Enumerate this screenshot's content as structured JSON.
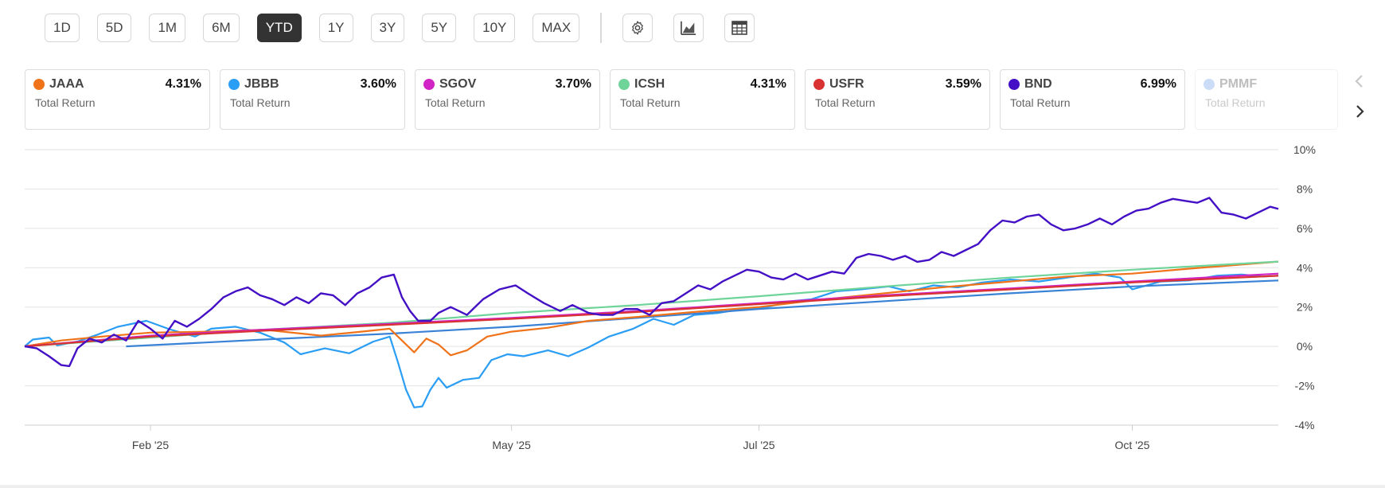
{
  "toolbar": {
    "ranges": [
      "1D",
      "5D",
      "1M",
      "6M",
      "YTD",
      "1Y",
      "3Y",
      "5Y",
      "10Y",
      "MAX"
    ],
    "active_range": "YTD",
    "icons": [
      "gear-icon",
      "chart-type-icon",
      "table-icon"
    ]
  },
  "cards": [
    {
      "symbol": "JAAA",
      "value": "4.31%",
      "sub": "Total Return",
      "color": "#f07219"
    },
    {
      "symbol": "JBBB",
      "value": "3.60%",
      "sub": "Total Return",
      "color": "#2a9df4"
    },
    {
      "symbol": "SGOV",
      "value": "3.70%",
      "sub": "Total Return",
      "color": "#d124c4"
    },
    {
      "symbol": "ICSH",
      "value": "4.31%",
      "sub": "Total Return",
      "color": "#6fd49a"
    },
    {
      "symbol": "USFR",
      "value": "3.59%",
      "sub": "Total Return",
      "color": "#d93232"
    },
    {
      "symbol": "BND",
      "value": "6.99%",
      "sub": "Total Return",
      "color": "#4410c6"
    },
    {
      "symbol": "PMMF",
      "value": "",
      "sub": "Total Return",
      "color": "#6a9ee8"
    }
  ],
  "nav": {
    "prev_icon": "chevron-left-icon",
    "next_icon": "chevron-right-icon"
  },
  "chart_data": {
    "type": "line",
    "title": "",
    "xlabel": "",
    "ylabel": "",
    "x_range": [
      "2025-01-01",
      "2025-11-06"
    ],
    "ylim": [
      -4,
      10
    ],
    "y_ticks": [
      -4,
      -2,
      0,
      2,
      4,
      6,
      8,
      10
    ],
    "y_tick_labels": [
      "-4%",
      "-2%",
      "0%",
      "2%",
      "4%",
      "6%",
      "8%",
      "10%"
    ],
    "x_ticks": [
      {
        "date": "2025-02-01",
        "label": "Feb '25"
      },
      {
        "date": "2025-05-01",
        "label": "May '25"
      },
      {
        "date": "2025-07-01",
        "label": "Jul '25"
      },
      {
        "date": "2025-10-01",
        "label": "Oct '25"
      }
    ],
    "grid": true,
    "series": [
      {
        "name": "JBBB",
        "color": "#2a9df4",
        "points": [
          [
            "2025-01-01",
            0
          ],
          [
            "2025-01-03",
            0.35
          ],
          [
            "2025-01-07",
            0.45
          ],
          [
            "2025-01-09",
            0.05
          ],
          [
            "2025-01-14",
            0.25
          ],
          [
            "2025-01-19",
            0.6
          ],
          [
            "2025-01-24",
            1.0
          ],
          [
            "2025-01-31",
            1.3
          ],
          [
            "2025-02-06",
            0.85
          ],
          [
            "2025-02-12",
            0.5
          ],
          [
            "2025-02-16",
            0.9
          ],
          [
            "2025-02-22",
            1.0
          ],
          [
            "2025-02-28",
            0.7
          ],
          [
            "2025-03-06",
            0.2
          ],
          [
            "2025-03-10",
            -0.4
          ],
          [
            "2025-03-16",
            -0.1
          ],
          [
            "2025-03-22",
            -0.35
          ],
          [
            "2025-03-28",
            0.25
          ],
          [
            "2025-04-01",
            0.5
          ],
          [
            "2025-04-03",
            -0.8
          ],
          [
            "2025-04-05",
            -2.2
          ],
          [
            "2025-04-07",
            -3.1
          ],
          [
            "2025-04-09",
            -3.05
          ],
          [
            "2025-04-11",
            -2.2
          ],
          [
            "2025-04-13",
            -1.6
          ],
          [
            "2025-04-15",
            -2.1
          ],
          [
            "2025-04-19",
            -1.7
          ],
          [
            "2025-04-23",
            -1.6
          ],
          [
            "2025-04-26",
            -0.7
          ],
          [
            "2025-04-30",
            -0.4
          ],
          [
            "2025-05-04",
            -0.5
          ],
          [
            "2025-05-10",
            -0.2
          ],
          [
            "2025-05-15",
            -0.5
          ],
          [
            "2025-05-20",
            -0.05
          ],
          [
            "2025-05-25",
            0.5
          ],
          [
            "2025-05-31",
            0.9
          ],
          [
            "2025-06-05",
            1.4
          ],
          [
            "2025-06-10",
            1.1
          ],
          [
            "2025-06-15",
            1.6
          ],
          [
            "2025-06-21",
            1.7
          ],
          [
            "2025-06-27",
            1.9
          ],
          [
            "2025-07-03",
            2.0
          ],
          [
            "2025-07-09",
            2.3
          ],
          [
            "2025-07-14",
            2.4
          ],
          [
            "2025-07-20",
            2.8
          ],
          [
            "2025-07-26",
            2.9
          ],
          [
            "2025-08-02",
            3.05
          ],
          [
            "2025-08-07",
            2.8
          ],
          [
            "2025-08-13",
            3.1
          ],
          [
            "2025-08-19",
            3.0
          ],
          [
            "2025-08-25",
            3.25
          ],
          [
            "2025-09-01",
            3.4
          ],
          [
            "2025-09-08",
            3.3
          ],
          [
            "2025-09-15",
            3.5
          ],
          [
            "2025-09-22",
            3.7
          ],
          [
            "2025-09-28",
            3.5
          ],
          [
            "2025-10-01",
            2.9
          ],
          [
            "2025-10-08",
            3.3
          ],
          [
            "2025-10-15",
            3.35
          ],
          [
            "2025-10-22",
            3.6
          ],
          [
            "2025-10-28",
            3.65
          ],
          [
            "2025-11-02",
            3.55
          ],
          [
            "2025-11-06",
            3.6
          ]
        ]
      },
      {
        "name": "PMMF",
        "color": "#3a82d6",
        "points": [
          [
            "2025-01-26",
            0.0
          ],
          [
            "2025-02-10",
            0.15
          ],
          [
            "2025-03-01",
            0.35
          ],
          [
            "2025-04-01",
            0.65
          ],
          [
            "2025-05-01",
            1.0
          ],
          [
            "2025-06-01",
            1.45
          ],
          [
            "2025-07-01",
            1.9
          ],
          [
            "2025-08-01",
            2.3
          ],
          [
            "2025-09-01",
            2.7
          ],
          [
            "2025-10-01",
            3.05
          ],
          [
            "2025-11-06",
            3.35
          ]
        ]
      },
      {
        "name": "JAAA",
        "color": "#f07219",
        "points": [
          [
            "2025-01-01",
            0
          ],
          [
            "2025-01-10",
            0.3
          ],
          [
            "2025-01-20",
            0.5
          ],
          [
            "2025-02-01",
            0.7
          ],
          [
            "2025-02-15",
            0.75
          ],
          [
            "2025-03-01",
            0.85
          ],
          [
            "2025-03-15",
            0.55
          ],
          [
            "2025-03-25",
            0.75
          ],
          [
            "2025-04-01",
            0.9
          ],
          [
            "2025-04-04",
            0.3
          ],
          [
            "2025-04-07",
            -0.3
          ],
          [
            "2025-04-10",
            0.4
          ],
          [
            "2025-04-13",
            0.1
          ],
          [
            "2025-04-16",
            -0.45
          ],
          [
            "2025-04-20",
            -0.2
          ],
          [
            "2025-04-25",
            0.5
          ],
          [
            "2025-05-01",
            0.75
          ],
          [
            "2025-05-10",
            0.95
          ],
          [
            "2025-05-20",
            1.3
          ],
          [
            "2025-06-01",
            1.5
          ],
          [
            "2025-06-15",
            1.75
          ],
          [
            "2025-07-01",
            2.0
          ],
          [
            "2025-07-15",
            2.35
          ],
          [
            "2025-08-01",
            2.7
          ],
          [
            "2025-08-15",
            3.0
          ],
          [
            "2025-09-01",
            3.3
          ],
          [
            "2025-09-15",
            3.55
          ],
          [
            "2025-10-01",
            3.7
          ],
          [
            "2025-10-15",
            3.95
          ],
          [
            "2025-11-06",
            4.31
          ]
        ]
      },
      {
        "name": "ICSH",
        "color": "#6fd49a",
        "points": [
          [
            "2025-01-01",
            0
          ],
          [
            "2025-02-01",
            0.45
          ],
          [
            "2025-03-01",
            0.85
          ],
          [
            "2025-04-01",
            1.2
          ],
          [
            "2025-04-10",
            1.35
          ],
          [
            "2025-05-01",
            1.7
          ],
          [
            "2025-06-01",
            2.1
          ],
          [
            "2025-07-01",
            2.55
          ],
          [
            "2025-08-01",
            3.05
          ],
          [
            "2025-09-01",
            3.5
          ],
          [
            "2025-10-01",
            3.9
          ],
          [
            "2025-11-06",
            4.31
          ]
        ]
      },
      {
        "name": "SGOV",
        "color": "#d124c4",
        "points": [
          [
            "2025-01-01",
            0
          ],
          [
            "2025-02-01",
            0.55
          ],
          [
            "2025-03-01",
            0.85
          ],
          [
            "2025-04-01",
            1.15
          ],
          [
            "2025-05-01",
            1.45
          ],
          [
            "2025-06-01",
            1.8
          ],
          [
            "2025-07-01",
            2.2
          ],
          [
            "2025-08-01",
            2.6
          ],
          [
            "2025-09-01",
            2.95
          ],
          [
            "2025-10-01",
            3.3
          ],
          [
            "2025-11-06",
            3.7
          ]
        ]
      },
      {
        "name": "USFR",
        "color": "#d93232",
        "points": [
          [
            "2025-01-01",
            0
          ],
          [
            "2025-02-01",
            0.5
          ],
          [
            "2025-03-01",
            0.8
          ],
          [
            "2025-04-01",
            1.1
          ],
          [
            "2025-05-01",
            1.4
          ],
          [
            "2025-06-01",
            1.75
          ],
          [
            "2025-07-01",
            2.15
          ],
          [
            "2025-08-01",
            2.55
          ],
          [
            "2025-09-01",
            2.9
          ],
          [
            "2025-10-01",
            3.25
          ],
          [
            "2025-11-06",
            3.59
          ]
        ]
      },
      {
        "name": "BND",
        "color": "#4410c6",
        "points": [
          [
            "2025-01-01",
            0
          ],
          [
            "2025-01-04",
            -0.1
          ],
          [
            "2025-01-07",
            -0.5
          ],
          [
            "2025-01-10",
            -0.95
          ],
          [
            "2025-01-12",
            -1.0
          ],
          [
            "2025-01-14",
            -0.1
          ],
          [
            "2025-01-17",
            0.4
          ],
          [
            "2025-01-20",
            0.2
          ],
          [
            "2025-01-23",
            0.6
          ],
          [
            "2025-01-26",
            0.3
          ],
          [
            "2025-01-29",
            1.3
          ],
          [
            "2025-02-01",
            0.9
          ],
          [
            "2025-02-04",
            0.4
          ],
          [
            "2025-02-07",
            1.3
          ],
          [
            "2025-02-10",
            1.0
          ],
          [
            "2025-02-13",
            1.4
          ],
          [
            "2025-02-16",
            1.9
          ],
          [
            "2025-02-19",
            2.5
          ],
          [
            "2025-02-22",
            2.8
          ],
          [
            "2025-02-25",
            3.0
          ],
          [
            "2025-02-28",
            2.6
          ],
          [
            "2025-03-03",
            2.4
          ],
          [
            "2025-03-06",
            2.1
          ],
          [
            "2025-03-09",
            2.5
          ],
          [
            "2025-03-12",
            2.2
          ],
          [
            "2025-03-15",
            2.7
          ],
          [
            "2025-03-18",
            2.6
          ],
          [
            "2025-03-21",
            2.1
          ],
          [
            "2025-03-24",
            2.7
          ],
          [
            "2025-03-27",
            3.0
          ],
          [
            "2025-03-30",
            3.5
          ],
          [
            "2025-04-02",
            3.65
          ],
          [
            "2025-04-04",
            2.5
          ],
          [
            "2025-04-06",
            1.8
          ],
          [
            "2025-04-08",
            1.3
          ],
          [
            "2025-04-11",
            1.3
          ],
          [
            "2025-04-13",
            1.7
          ],
          [
            "2025-04-16",
            2.0
          ],
          [
            "2025-04-20",
            1.6
          ],
          [
            "2025-04-24",
            2.4
          ],
          [
            "2025-04-28",
            2.9
          ],
          [
            "2025-05-02",
            3.1
          ],
          [
            "2025-05-05",
            2.7
          ],
          [
            "2025-05-09",
            2.2
          ],
          [
            "2025-05-13",
            1.8
          ],
          [
            "2025-05-16",
            2.1
          ],
          [
            "2025-05-20",
            1.7
          ],
          [
            "2025-05-23",
            1.6
          ],
          [
            "2025-05-26",
            1.6
          ],
          [
            "2025-05-29",
            1.9
          ],
          [
            "2025-06-01",
            1.9
          ],
          [
            "2025-06-04",
            1.6
          ],
          [
            "2025-06-07",
            2.2
          ],
          [
            "2025-06-10",
            2.3
          ],
          [
            "2025-06-13",
            2.7
          ],
          [
            "2025-06-16",
            3.1
          ],
          [
            "2025-06-19",
            2.9
          ],
          [
            "2025-06-22",
            3.3
          ],
          [
            "2025-06-25",
            3.6
          ],
          [
            "2025-06-28",
            3.9
          ],
          [
            "2025-07-01",
            3.8
          ],
          [
            "2025-07-04",
            3.5
          ],
          [
            "2025-07-07",
            3.4
          ],
          [
            "2025-07-10",
            3.7
          ],
          [
            "2025-07-13",
            3.4
          ],
          [
            "2025-07-16",
            3.6
          ],
          [
            "2025-07-19",
            3.8
          ],
          [
            "2025-07-22",
            3.7
          ],
          [
            "2025-07-25",
            4.5
          ],
          [
            "2025-07-28",
            4.7
          ],
          [
            "2025-07-31",
            4.6
          ],
          [
            "2025-08-03",
            4.4
          ],
          [
            "2025-08-06",
            4.6
          ],
          [
            "2025-08-09",
            4.3
          ],
          [
            "2025-08-12",
            4.4
          ],
          [
            "2025-08-15",
            4.8
          ],
          [
            "2025-08-18",
            4.6
          ],
          [
            "2025-08-21",
            4.9
          ],
          [
            "2025-08-24",
            5.2
          ],
          [
            "2025-08-27",
            5.9
          ],
          [
            "2025-08-30",
            6.4
          ],
          [
            "2025-09-02",
            6.3
          ],
          [
            "2025-09-05",
            6.6
          ],
          [
            "2025-09-08",
            6.7
          ],
          [
            "2025-09-11",
            6.2
          ],
          [
            "2025-09-14",
            5.9
          ],
          [
            "2025-09-17",
            6.0
          ],
          [
            "2025-09-20",
            6.2
          ],
          [
            "2025-09-23",
            6.5
          ],
          [
            "2025-09-26",
            6.2
          ],
          [
            "2025-09-29",
            6.6
          ],
          [
            "2025-10-02",
            6.9
          ],
          [
            "2025-10-05",
            7.0
          ],
          [
            "2025-10-08",
            7.3
          ],
          [
            "2025-10-11",
            7.5
          ],
          [
            "2025-10-14",
            7.4
          ],
          [
            "2025-10-17",
            7.3
          ],
          [
            "2025-10-20",
            7.55
          ],
          [
            "2025-10-23",
            6.8
          ],
          [
            "2025-10-26",
            6.7
          ],
          [
            "2025-10-29",
            6.5
          ],
          [
            "2025-11-01",
            6.8
          ],
          [
            "2025-11-04",
            7.1
          ],
          [
            "2025-11-06",
            6.99
          ]
        ]
      }
    ]
  }
}
